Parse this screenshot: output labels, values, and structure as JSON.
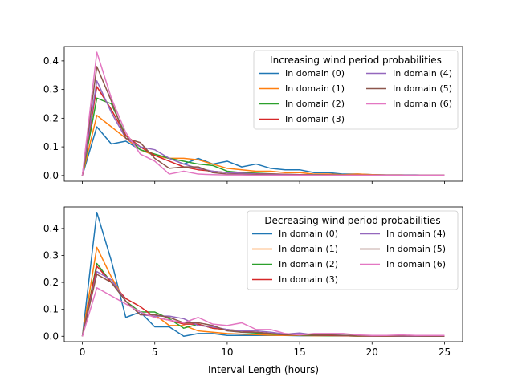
{
  "colors": [
    "#1f77b4",
    "#ff7f0e",
    "#2ca02c",
    "#d62728",
    "#9467bd",
    "#8c564b",
    "#e377c2"
  ],
  "chart_data": [
    {
      "type": "line",
      "title": "",
      "xlabel": "",
      "ylabel": "",
      "xlim": [
        -1.25,
        26.25
      ],
      "ylim": [
        -0.02,
        0.45
      ],
      "xticks": [
        0,
        5,
        10,
        15,
        20,
        25
      ],
      "xtick_labels_visible": false,
      "yticks": [
        0.0,
        0.1,
        0.2,
        0.3,
        0.4
      ],
      "ytick_labels": [
        "0.0",
        "0.1",
        "0.2",
        "0.3",
        "0.4"
      ],
      "legend_title": "Increasing wind period probabilities",
      "legend_location": "upper right",
      "legend_columns": 2,
      "x": [
        0,
        1,
        2,
        3,
        4,
        5,
        6,
        7,
        8,
        9,
        10,
        11,
        12,
        13,
        14,
        15,
        16,
        17,
        18,
        19,
        20,
        21,
        22,
        23,
        24,
        25
      ],
      "series": [
        {
          "name": "In domain (0)",
          "values": [
            0,
            0.17,
            0.11,
            0.12,
            0.09,
            0.07,
            0.06,
            0.04,
            0.06,
            0.04,
            0.05,
            0.03,
            0.04,
            0.025,
            0.02,
            0.02,
            0.01,
            0.01,
            0.005,
            0.005,
            0.003,
            0.002,
            0.002,
            0.002,
            0.001,
            0.001
          ]
        },
        {
          "name": "In domain (1)",
          "values": [
            0,
            0.21,
            0.17,
            0.13,
            0.09,
            0.07,
            0.06,
            0.06,
            0.055,
            0.04,
            0.025,
            0.02,
            0.015,
            0.015,
            0.01,
            0.01,
            0.005,
            0.005,
            0.003,
            0.005,
            0.003,
            0.002,
            0.002,
            0.001,
            0.001,
            0.001
          ]
        },
        {
          "name": "In domain (2)",
          "values": [
            0,
            0.27,
            0.25,
            0.14,
            0.09,
            0.075,
            0.06,
            0.05,
            0.04,
            0.035,
            0.015,
            0.01,
            0.008,
            0.006,
            0.004,
            0.003,
            0.003,
            0.002,
            0.002,
            0.001,
            0.001,
            0.001,
            0.001,
            0.001,
            0.001,
            0.001
          ]
        },
        {
          "name": "In domain (3)",
          "values": [
            0,
            0.31,
            0.23,
            0.14,
            0.1,
            0.07,
            0.05,
            0.03,
            0.02,
            0.015,
            0.01,
            0.008,
            0.006,
            0.005,
            0.004,
            0.003,
            0.002,
            0.002,
            0.001,
            0.001,
            0.001,
            0.001,
            0.001,
            0.001,
            0.001,
            0.001
          ]
        },
        {
          "name": "In domain (4)",
          "values": [
            0,
            0.33,
            0.22,
            0.13,
            0.1,
            0.09,
            0.06,
            0.04,
            0.025,
            0.015,
            0.01,
            0.008,
            0.005,
            0.004,
            0.003,
            0.002,
            0.002,
            0.001,
            0.001,
            0.001,
            0.001,
            0.001,
            0.001,
            0.001,
            0.001,
            0.001
          ]
        },
        {
          "name": "In domain (5)",
          "values": [
            0,
            0.38,
            0.26,
            0.13,
            0.115,
            0.06,
            0.025,
            0.03,
            0.03,
            0.01,
            0.005,
            0.004,
            0.003,
            0.002,
            0.002,
            0.001,
            0.001,
            0.001,
            0.001,
            0.001,
            0.001,
            0.001,
            0.001,
            0.001,
            0.001,
            0.001
          ]
        },
        {
          "name": "In domain (6)",
          "values": [
            0,
            0.43,
            0.27,
            0.15,
            0.075,
            0.05,
            0.005,
            0.015,
            0.005,
            0.003,
            0.002,
            0.002,
            0.001,
            0.001,
            0.001,
            0.001,
            0.001,
            0.001,
            0.001,
            0.001,
            0.001,
            0.001,
            0.001,
            0.001,
            0.001,
            0.001
          ]
        }
      ]
    },
    {
      "type": "line",
      "title": "",
      "xlabel": "Interval Length (hours)",
      "ylabel": "",
      "xlim": [
        -1.25,
        26.25
      ],
      "ylim": [
        -0.02,
        0.48
      ],
      "xticks": [
        0,
        5,
        10,
        15,
        20,
        25
      ],
      "xtick_labels": [
        "0",
        "5",
        "10",
        "15",
        "20",
        "25"
      ],
      "xtick_labels_visible": true,
      "yticks": [
        0.0,
        0.1,
        0.2,
        0.3,
        0.4
      ],
      "ytick_labels": [
        "0.0",
        "0.1",
        "0.2",
        "0.3",
        "0.4"
      ],
      "legend_title": "Decreasing wind period probabilities",
      "legend_location": "upper right",
      "legend_columns": 2,
      "x": [
        0,
        1,
        2,
        3,
        4,
        5,
        6,
        7,
        8,
        9,
        10,
        11,
        12,
        13,
        14,
        15,
        16,
        17,
        18,
        19,
        20,
        21,
        22,
        23,
        24,
        25
      ],
      "series": [
        {
          "name": "In domain (0)",
          "values": [
            0,
            0.46,
            0.28,
            0.07,
            0.09,
            0.035,
            0.035,
            0.0,
            0.01,
            0.01,
            0.003,
            0.003,
            0.003,
            0.003,
            0.003,
            0.002,
            0.002,
            0.002,
            0.002,
            0.001,
            0.001,
            0.001,
            0.001,
            0.001,
            0.001,
            0.001
          ]
        },
        {
          "name": "In domain (1)",
          "values": [
            0,
            0.33,
            0.22,
            0.13,
            0.08,
            0.08,
            0.04,
            0.04,
            0.02,
            0.015,
            0.01,
            0.008,
            0.006,
            0.004,
            0.003,
            0.003,
            0.002,
            0.002,
            0.002,
            0.001,
            0.001,
            0.001,
            0.001,
            0.001,
            0.001,
            0.001
          ]
        },
        {
          "name": "In domain (2)",
          "values": [
            0,
            0.27,
            0.2,
            0.13,
            0.09,
            0.09,
            0.065,
            0.03,
            0.045,
            0.03,
            0.025,
            0.015,
            0.012,
            0.008,
            0.006,
            0.004,
            0.003,
            0.002,
            0.002,
            0.001,
            0.001,
            0.001,
            0.001,
            0.001,
            0.001,
            0.001
          ]
        },
        {
          "name": "In domain (3)",
          "values": [
            0,
            0.26,
            0.2,
            0.14,
            0.11,
            0.07,
            0.06,
            0.045,
            0.045,
            0.03,
            0.025,
            0.02,
            0.015,
            0.01,
            0.008,
            0.006,
            0.004,
            0.003,
            0.002,
            0.002,
            0.001,
            0.001,
            0.001,
            0.001,
            0.001,
            0.001
          ]
        },
        {
          "name": "In domain (4)",
          "values": [
            0,
            0.24,
            0.21,
            0.13,
            0.08,
            0.075,
            0.075,
            0.065,
            0.04,
            0.035,
            0.025,
            0.02,
            0.02,
            0.015,
            0.008,
            0.012,
            0.005,
            0.005,
            0.004,
            0.003,
            0.002,
            0.002,
            0.001,
            0.001,
            0.001,
            0.001
          ]
        },
        {
          "name": "In domain (5)",
          "values": [
            0,
            0.23,
            0.2,
            0.13,
            0.08,
            0.08,
            0.07,
            0.05,
            0.05,
            0.04,
            0.02,
            0.015,
            0.015,
            0.01,
            0.005,
            0.005,
            0.005,
            0.005,
            0.003,
            0.003,
            0.003,
            0.002,
            0.002,
            0.002,
            0.001,
            0.001
          ]
        },
        {
          "name": "In domain (6)",
          "values": [
            0,
            0.18,
            0.15,
            0.12,
            0.09,
            0.07,
            0.06,
            0.05,
            0.07,
            0.045,
            0.04,
            0.05,
            0.025,
            0.025,
            0.01,
            0.005,
            0.01,
            0.01,
            0.01,
            0.005,
            0.003,
            0.003,
            0.005,
            0.003,
            0.003,
            0.003
          ]
        }
      ]
    }
  ]
}
